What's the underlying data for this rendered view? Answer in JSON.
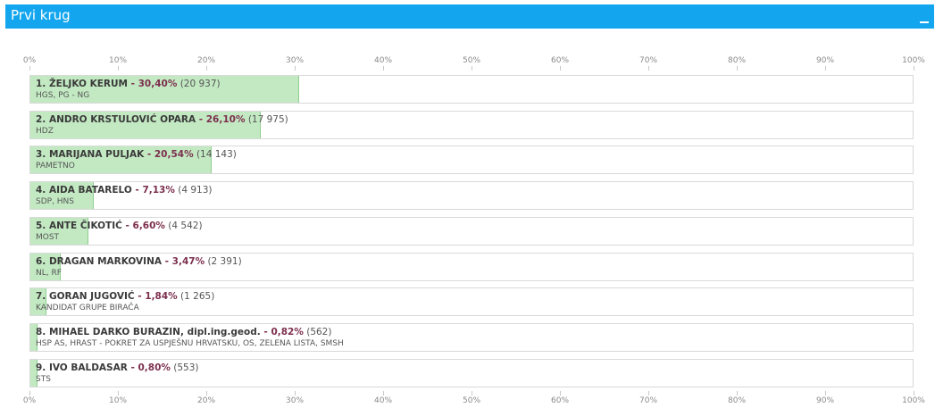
{
  "panel": {
    "title": "Prvi krug",
    "collapse_symbol": ""
  },
  "chart_data": {
    "type": "bar",
    "orientation": "horizontal",
    "xlim": [
      0,
      100
    ],
    "x_ticks": [
      "0%",
      "10%",
      "20%",
      "30%",
      "40%",
      "50%",
      "60%",
      "70%",
      "80%",
      "90%",
      "100%"
    ],
    "categories": [
      "1. ŽELJKO KERUM",
      "2. ANDRO KRSTULOVIĆ OPARA",
      "3. MARIJANA PULJAK",
      "4. AIDA BATARELO",
      "5. ANTE ČIKOTIĆ",
      "6. DRAGAN MARKOVINA",
      "7. GORAN JUGOVIĆ",
      "8. MIHAEL DARKO BURAZIN, dipl.ing.geod.",
      "9. IVO BALDASAR"
    ],
    "values": [
      30.4,
      26.1,
      20.54,
      7.13,
      6.6,
      3.47,
      1.84,
      0.82,
      0.8
    ],
    "rows": [
      {
        "name": "1. ŽELJKO KERUM",
        "pct_label": "30,40%",
        "votes_label": "(20 937)",
        "party": "HGS, PG - NG"
      },
      {
        "name": "2. ANDRO KRSTULOVIĆ OPARA",
        "pct_label": "26,10%",
        "votes_label": "(17 975)",
        "party": "HDZ"
      },
      {
        "name": "3. MARIJANA PULJAK",
        "pct_label": "20,54%",
        "votes_label": "(14 143)",
        "party": "PAMETNO"
      },
      {
        "name": "4. AIDA BATARELO",
        "pct_label": "7,13%",
        "votes_label": "(4 913)",
        "party": "SDP, HNS"
      },
      {
        "name": "5. ANTE ČIKOTIĆ",
        "pct_label": "6,60%",
        "votes_label": "(4 542)",
        "party": "MOST"
      },
      {
        "name": "6. DRAGAN MARKOVINA",
        "pct_label": "3,47%",
        "votes_label": "(2 391)",
        "party": "NL, RF"
      },
      {
        "name": "7. GORAN JUGOVIĆ",
        "pct_label": "1,84%",
        "votes_label": "(1 265)",
        "party": "KANDIDAT GRUPE BIRAČA"
      },
      {
        "name": "8. MIHAEL DARKO BURAZIN, dipl.ing.geod.",
        "pct_label": "0,82%",
        "votes_label": "(562)",
        "party": "HSP AS, HRAST - POKRET ZA USPJEŠNU HRVATSKU, OS, ZELENA LISTA, SMSH"
      },
      {
        "name": "9. IVO BALDASAR",
        "pct_label": "0,80%",
        "votes_label": "(553)",
        "party": "STS"
      }
    ],
    "colors": {
      "bar_fill": "#c3e9c3",
      "bar_edge": "#8fcf8f",
      "percent_text": "#7c2f4d",
      "header": "#13a6ee"
    },
    "grid": false
  }
}
